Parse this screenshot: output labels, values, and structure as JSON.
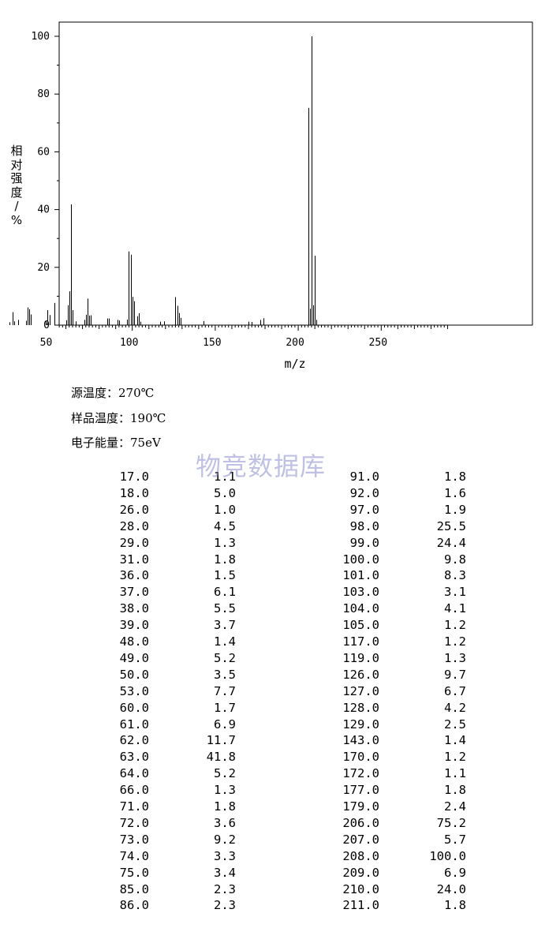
{
  "chart_data": {
    "type": "bar",
    "xlabel": "m/z",
    "ylabel": "相对强度/%",
    "xlim": [
      10,
      290
    ],
    "ylim": [
      0,
      100
    ],
    "xticks": [
      50,
      100,
      150,
      200,
      250
    ],
    "yticks": [
      0,
      20,
      40,
      60,
      80,
      100
    ],
    "peaks": [
      [
        17.0,
        1.1
      ],
      [
        18.0,
        5.0
      ],
      [
        26.0,
        1.0
      ],
      [
        28.0,
        4.5
      ],
      [
        29.0,
        1.3
      ],
      [
        31.0,
        1.8
      ],
      [
        36.0,
        1.5
      ],
      [
        37.0,
        6.1
      ],
      [
        38.0,
        5.5
      ],
      [
        39.0,
        3.7
      ],
      [
        48.0,
        1.4
      ],
      [
        49.0,
        5.2
      ],
      [
        50.0,
        3.5
      ],
      [
        53.0,
        7.7
      ],
      [
        60.0,
        1.7
      ],
      [
        61.0,
        6.9
      ],
      [
        62.0,
        11.7
      ],
      [
        63.0,
        41.8
      ],
      [
        64.0,
        5.2
      ],
      [
        66.0,
        1.3
      ],
      [
        71.0,
        1.8
      ],
      [
        72.0,
        3.6
      ],
      [
        73.0,
        9.2
      ],
      [
        74.0,
        3.3
      ],
      [
        75.0,
        3.4
      ],
      [
        85.0,
        2.3
      ],
      [
        86.0,
        2.3
      ],
      [
        91.0,
        1.8
      ],
      [
        92.0,
        1.6
      ],
      [
        97.0,
        1.9
      ],
      [
        98.0,
        25.5
      ],
      [
        99.0,
        24.4
      ],
      [
        100.0,
        9.8
      ],
      [
        101.0,
        8.3
      ],
      [
        103.0,
        3.1
      ],
      [
        104.0,
        4.1
      ],
      [
        105.0,
        1.2
      ],
      [
        117.0,
        1.2
      ],
      [
        119.0,
        1.3
      ],
      [
        126.0,
        9.7
      ],
      [
        127.0,
        6.7
      ],
      [
        128.0,
        4.2
      ],
      [
        129.0,
        2.5
      ],
      [
        143.0,
        1.4
      ],
      [
        170.0,
        1.2
      ],
      [
        172.0,
        1.1
      ],
      [
        177.0,
        1.8
      ],
      [
        179.0,
        2.4
      ],
      [
        206.0,
        75.2
      ],
      [
        207.0,
        5.7
      ],
      [
        208.0,
        100.0
      ],
      [
        209.0,
        6.9
      ],
      [
        210.0,
        24.0
      ],
      [
        211.0,
        1.8
      ]
    ]
  },
  "conditions": {
    "source_temp": "源温度：270℃",
    "sample_temp": "样品温度：190℃",
    "electron_energy": "电子能量：75eV"
  },
  "watermark": "物竞数据库",
  "table": {
    "left": [
      [
        "17.0",
        "1.1"
      ],
      [
        "18.0",
        "5.0"
      ],
      [
        "26.0",
        "1.0"
      ],
      [
        "28.0",
        "4.5"
      ],
      [
        "29.0",
        "1.3"
      ],
      [
        "31.0",
        "1.8"
      ],
      [
        "36.0",
        "1.5"
      ],
      [
        "37.0",
        "6.1"
      ],
      [
        "38.0",
        "5.5"
      ],
      [
        "39.0",
        "3.7"
      ],
      [
        "48.0",
        "1.4"
      ],
      [
        "49.0",
        "5.2"
      ],
      [
        "50.0",
        "3.5"
      ],
      [
        "53.0",
        "7.7"
      ],
      [
        "60.0",
        "1.7"
      ],
      [
        "61.0",
        "6.9"
      ],
      [
        "62.0",
        "11.7"
      ],
      [
        "63.0",
        "41.8"
      ],
      [
        "64.0",
        "5.2"
      ],
      [
        "66.0",
        "1.3"
      ],
      [
        "71.0",
        "1.8"
      ],
      [
        "72.0",
        "3.6"
      ],
      [
        "73.0",
        "9.2"
      ],
      [
        "74.0",
        "3.3"
      ],
      [
        "75.0",
        "3.4"
      ],
      [
        "85.0",
        "2.3"
      ],
      [
        "86.0",
        "2.3"
      ]
    ],
    "right": [
      [
        "91.0",
        "1.8"
      ],
      [
        "92.0",
        "1.6"
      ],
      [
        "97.0",
        "1.9"
      ],
      [
        "98.0",
        "25.5"
      ],
      [
        "99.0",
        "24.4"
      ],
      [
        "100.0",
        "9.8"
      ],
      [
        "101.0",
        "8.3"
      ],
      [
        "103.0",
        "3.1"
      ],
      [
        "104.0",
        "4.1"
      ],
      [
        "105.0",
        "1.2"
      ],
      [
        "117.0",
        "1.2"
      ],
      [
        "119.0",
        "1.3"
      ],
      [
        "126.0",
        "9.7"
      ],
      [
        "127.0",
        "6.7"
      ],
      [
        "128.0",
        "4.2"
      ],
      [
        "129.0",
        "2.5"
      ],
      [
        "143.0",
        "1.4"
      ],
      [
        "170.0",
        "1.2"
      ],
      [
        "172.0",
        "1.1"
      ],
      [
        "177.0",
        "1.8"
      ],
      [
        "179.0",
        "2.4"
      ],
      [
        "206.0",
        "75.2"
      ],
      [
        "207.0",
        "5.7"
      ],
      [
        "208.0",
        "100.0"
      ],
      [
        "209.0",
        "6.9"
      ],
      [
        "210.0",
        "24.0"
      ],
      [
        "211.0",
        "1.8"
      ]
    ]
  }
}
